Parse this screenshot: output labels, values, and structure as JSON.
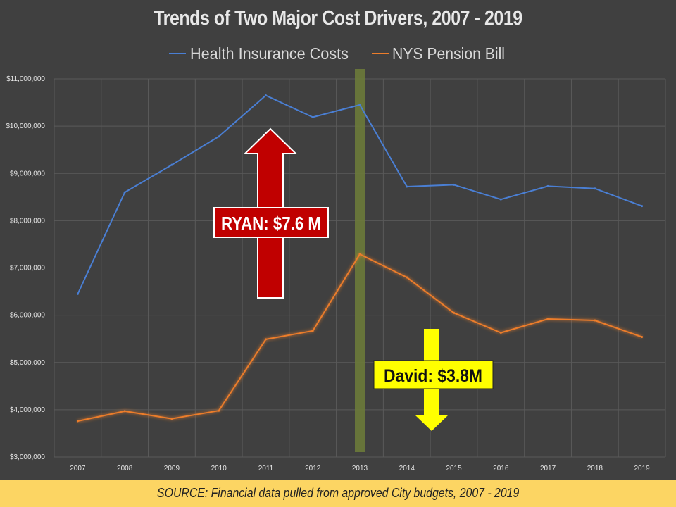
{
  "chart_data": {
    "type": "line",
    "title": "Trends of Two Major Cost Drivers, 2007 - 2019",
    "x": [
      "2007",
      "2008",
      "2009",
      "2010",
      "2011",
      "2012",
      "2013",
      "2014",
      "2015",
      "2016",
      "2017",
      "2018",
      "2019"
    ],
    "series": [
      {
        "name": "Health Insurance Costs",
        "color": "#4a7fd4",
        "values": [
          6450000,
          8600000,
          9180000,
          9780000,
          10650000,
          10190000,
          10450000,
          8720000,
          8760000,
          8450000,
          8730000,
          8680000,
          8310000
        ]
      },
      {
        "name": "NYS Pension Bill",
        "color": "#ec7d2b",
        "values": [
          3760000,
          3970000,
          3810000,
          3980000,
          5490000,
          5670000,
          7290000,
          6800000,
          6050000,
          5630000,
          5920000,
          5890000,
          5540000
        ]
      }
    ],
    "y_ticks": [
      "$3,000,000",
      "$4,000,000",
      "$5,000,000",
      "$6,000,000",
      "$7,000,000",
      "$8,000,000",
      "$9,000,000",
      "$10,000,000",
      "$11,000,000"
    ],
    "ylim": [
      3000000,
      11000000
    ],
    "grid": true,
    "legend_placement": "top-center",
    "highlight_x": "2013",
    "highlight_color": "#6b7a3a",
    "annotations": [
      {
        "text": "RYAN: $7.6 M",
        "direction": "up",
        "color": "#c00000"
      },
      {
        "text": "David: $3.8M",
        "direction": "down",
        "color": "#ffff00"
      }
    ]
  },
  "source_text": "SOURCE: Financial data pulled from approved City budgets, 2007 - 2019"
}
